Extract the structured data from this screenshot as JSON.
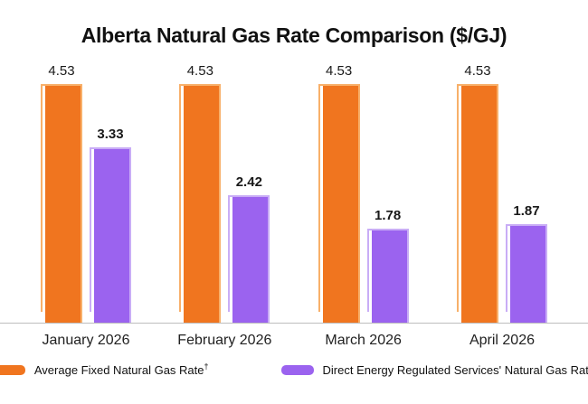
{
  "title": "Alberta Natural Gas Rate Comparison ($/GJ)",
  "chart_data": {
    "type": "bar",
    "title": "Alberta Natural Gas Rate Comparison ($/GJ)",
    "categories": [
      "January 2026",
      "February 2026",
      "March 2026",
      "April 2026"
    ],
    "series": [
      {
        "id": "average-fixed-rate",
        "name": "Average Fixed Natural Gas Rate†",
        "values": [
          4.53,
          4.53,
          4.53,
          4.53
        ],
        "color": "#F0751F",
        "tint": "#F8B06A",
        "value_label_weight": "regular"
      },
      {
        "id": "regulated-rate",
        "name": "Direct Energy Regulated Services' Natural Gas Rate",
        "values": [
          3.33,
          2.42,
          1.78,
          1.87
        ],
        "color": "#9B63EF",
        "tint": "#C9ADF6",
        "value_label_weight": "bold"
      }
    ],
    "xlabel": "",
    "ylabel": "",
    "ylim": [
      0,
      4.53
    ],
    "grid": false,
    "legend_position": "bottom",
    "value_labels": true
  },
  "legend": {
    "items": [
      {
        "id": "average-fixed-rate",
        "label": "Average Fixed Natural Gas Rate",
        "sup": "†",
        "color": "#F0751F"
      },
      {
        "id": "regulated-rate",
        "label": "Direct Energy Regulated Services' Natural Gas Rate",
        "sup": "",
        "color": "#9B63EF"
      }
    ]
  },
  "colors": {
    "background": "#FFFFFF",
    "axis_line": "#BDBDBD",
    "text": "#111111",
    "orange_fill": "#F0751F",
    "orange_tint": "#F8B06A",
    "purple_fill": "#9B63EF",
    "purple_tint": "#C9ADF6"
  }
}
